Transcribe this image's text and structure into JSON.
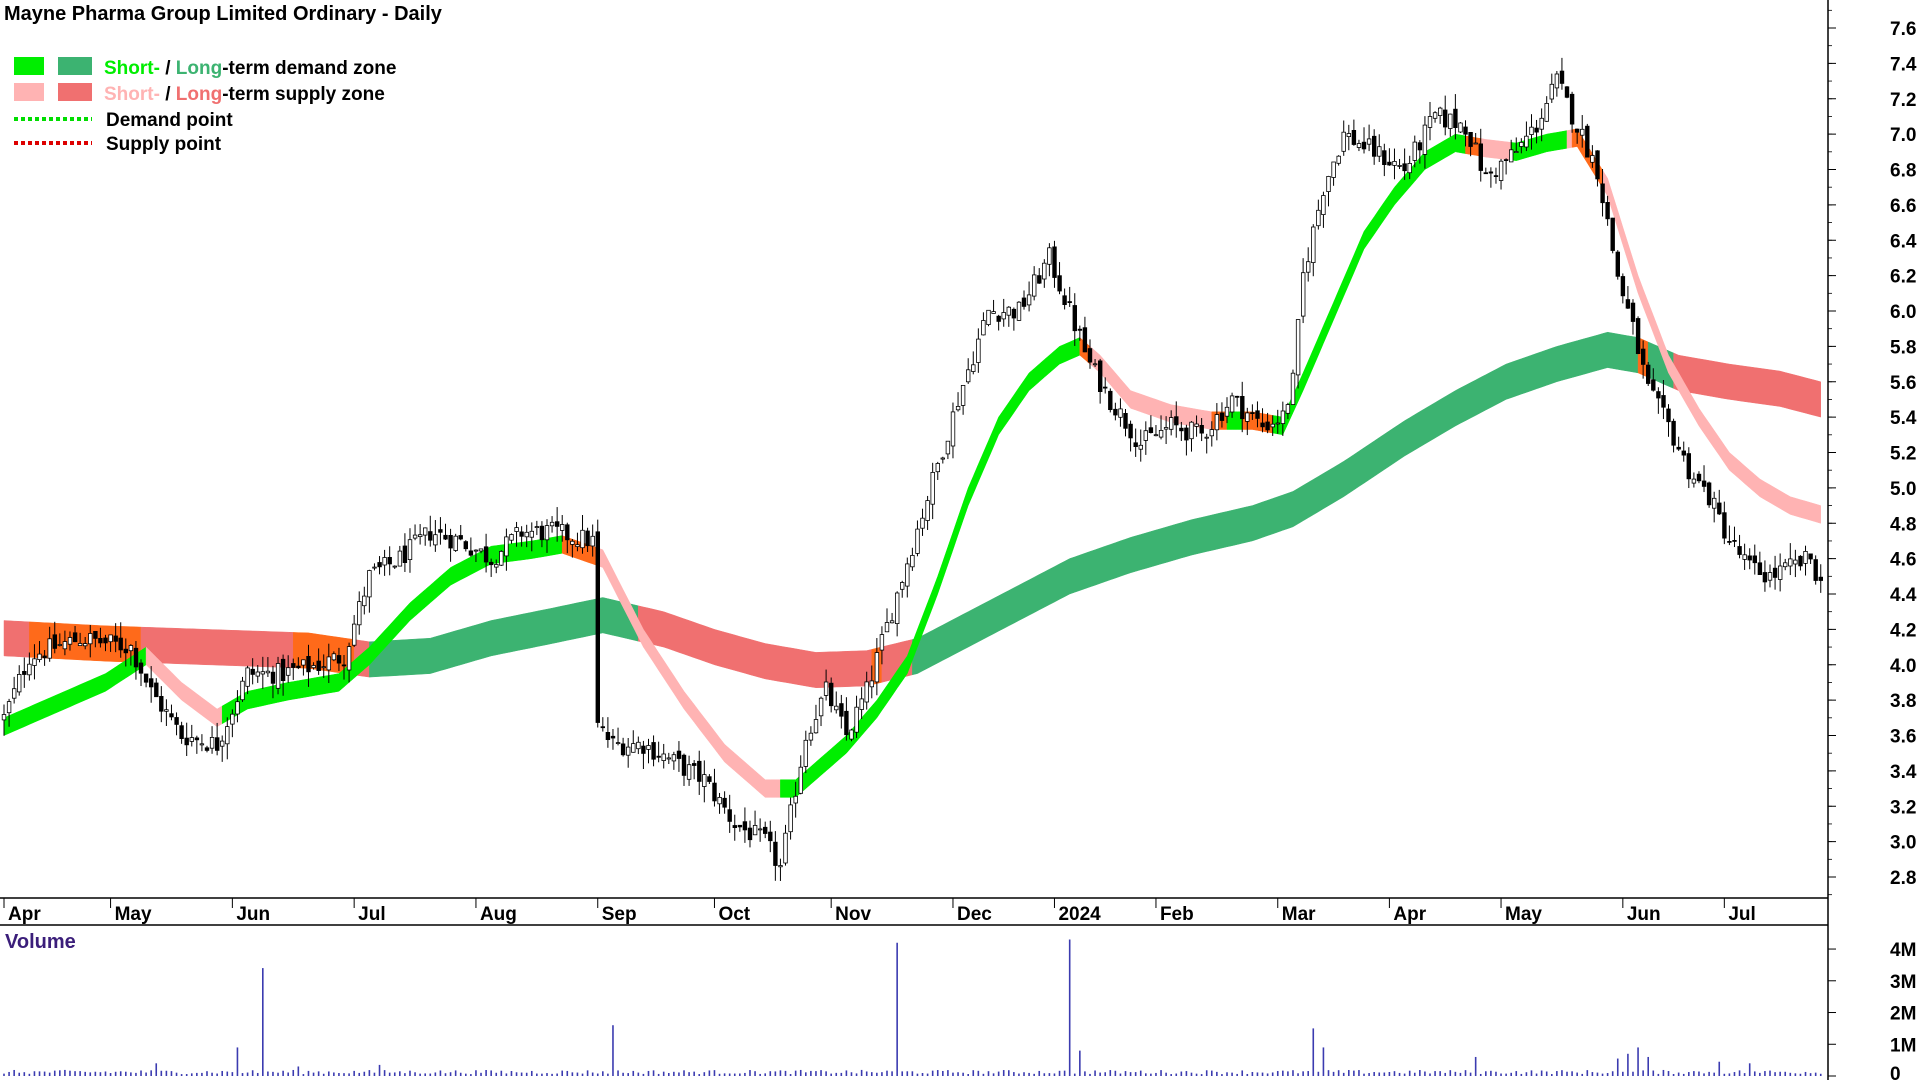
{
  "chart_data": {
    "type": "candlestick",
    "title": "Mayne Pharma Group Limited Ordinary - Daily",
    "legend": {
      "placement": "top-left",
      "items": [
        {
          "short": "Short-",
          "sep": " / ",
          "long": "Long",
          "suffix": "-term demand zone",
          "short_color": "#00ee00",
          "long_color": "#3cb371"
        },
        {
          "short": "Short-",
          "sep": " / ",
          "long": "Long",
          "suffix": "-term supply zone",
          "short_color": "#ffb3b3",
          "long_color": "#f07070"
        },
        {
          "label": "Demand point",
          "color": "#00dd00"
        },
        {
          "label": "Supply point",
          "color": "#dd0000"
        }
      ]
    },
    "colors": {
      "short_demand": "#00ee00",
      "long_demand": "#3cb371",
      "short_supply": "#ffb3b3",
      "long_supply": "#f07070",
      "overlap_orange": "#ff6a1a",
      "volume_bar": "#3b3bb0",
      "candle": "#000000"
    },
    "y_axis": {
      "min": 2.7,
      "max": 7.7,
      "ticks": [
        2.8,
        3.0,
        3.2,
        3.4,
        3.6,
        3.8,
        4.0,
        4.2,
        4.4,
        4.6,
        4.8,
        5.0,
        5.2,
        5.4,
        5.6,
        5.8,
        6.0,
        6.2,
        6.4,
        6.6,
        6.8,
        7.0,
        7.2,
        7.4,
        7.6
      ],
      "tick_labels": [
        "2.8",
        "3.0",
        "3.2",
        "3.4",
        "3.6",
        "3.8",
        "4.0",
        "4.2",
        "4.4",
        "4.6",
        "4.8",
        "5.0",
        "5.2",
        "5.4",
        "5.6",
        "5.8",
        "6.0",
        "6.2",
        "6.4",
        "6.6",
        "6.8",
        "7.0",
        "7.2",
        "7.4",
        "7.6"
      ]
    },
    "x_axis": {
      "labels": [
        "Apr",
        "May",
        "Jun",
        "Jul",
        "Aug",
        "Sep",
        "Oct",
        "Nov",
        "Dec",
        "2024",
        "Feb",
        "Mar",
        "Apr",
        "May",
        "Jun",
        "Jul"
      ],
      "label_day_index": [
        3,
        24,
        48,
        72,
        96,
        120,
        143,
        166,
        190,
        210,
        230,
        254,
        276,
        298,
        322,
        342
      ],
      "total_days": 348
    },
    "anchors_close": [
      [
        0,
        3.7
      ],
      [
        5,
        4.05
      ],
      [
        15,
        4.15
      ],
      [
        25,
        4.1
      ],
      [
        29,
        3.85
      ],
      [
        35,
        3.6
      ],
      [
        42,
        3.55
      ],
      [
        48,
        3.95
      ],
      [
        55,
        3.95
      ],
      [
        62,
        4.0
      ],
      [
        67,
        4.05
      ],
      [
        72,
        4.5
      ],
      [
        78,
        4.6
      ],
      [
        84,
        4.75
      ],
      [
        90,
        4.7
      ],
      [
        96,
        4.6
      ],
      [
        102,
        4.75
      ],
      [
        108,
        4.75
      ],
      [
        116,
        4.7
      ],
      [
        117,
        3.65
      ],
      [
        120,
        3.55
      ],
      [
        126,
        3.55
      ],
      [
        132,
        3.45
      ],
      [
        138,
        3.35
      ],
      [
        144,
        3.1
      ],
      [
        150,
        3.0
      ],
      [
        153,
        2.85
      ],
      [
        158,
        3.6
      ],
      [
        162,
        3.85
      ],
      [
        166,
        3.6
      ],
      [
        170,
        3.85
      ],
      [
        176,
        4.4
      ],
      [
        182,
        4.95
      ],
      [
        188,
        5.5
      ],
      [
        194,
        6.0
      ],
      [
        200,
        6.0
      ],
      [
        206,
        6.3
      ],
      [
        210,
        6.0
      ],
      [
        214,
        5.7
      ],
      [
        218,
        5.5
      ],
      [
        224,
        5.25
      ],
      [
        230,
        5.35
      ],
      [
        236,
        5.3
      ],
      [
        242,
        5.5
      ],
      [
        248,
        5.35
      ],
      [
        252,
        5.4
      ],
      [
        254,
        5.6
      ],
      [
        256,
        6.2
      ],
      [
        260,
        6.7
      ],
      [
        264,
        7.0
      ],
      [
        270,
        6.9
      ],
      [
        276,
        6.8
      ],
      [
        282,
        7.1
      ],
      [
        288,
        7.05
      ],
      [
        292,
        6.75
      ],
      [
        298,
        6.9
      ],
      [
        302,
        7.05
      ],
      [
        306,
        7.3
      ],
      [
        310,
        7.05
      ],
      [
        314,
        6.8
      ],
      [
        318,
        6.2
      ],
      [
        321,
        5.9
      ],
      [
        324,
        5.55
      ],
      [
        328,
        5.35
      ],
      [
        332,
        5.1
      ],
      [
        336,
        4.95
      ],
      [
        340,
        4.7
      ],
      [
        344,
        4.55
      ],
      [
        348,
        4.5
      ],
      [
        352,
        4.55
      ],
      [
        356,
        4.6
      ],
      [
        358,
        4.45
      ]
    ],
    "short_zone_mid": [
      [
        0,
        3.65
      ],
      [
        20,
        3.9
      ],
      [
        28,
        4.05
      ],
      [
        35,
        3.85
      ],
      [
        42,
        3.7
      ],
      [
        48,
        3.8
      ],
      [
        56,
        3.85
      ],
      [
        66,
        3.9
      ],
      [
        72,
        4.05
      ],
      [
        80,
        4.3
      ],
      [
        88,
        4.5
      ],
      [
        96,
        4.62
      ],
      [
        104,
        4.65
      ],
      [
        110,
        4.68
      ],
      [
        118,
        4.6
      ],
      [
        126,
        4.15
      ],
      [
        134,
        3.8
      ],
      [
        142,
        3.5
      ],
      [
        150,
        3.3
      ],
      [
        156,
        3.3
      ],
      [
        160,
        3.4
      ],
      [
        166,
        3.55
      ],
      [
        172,
        3.75
      ],
      [
        178,
        4.0
      ],
      [
        184,
        4.45
      ],
      [
        190,
        4.95
      ],
      [
        196,
        5.35
      ],
      [
        202,
        5.6
      ],
      [
        208,
        5.75
      ],
      [
        212,
        5.8
      ],
      [
        216,
        5.7
      ],
      [
        222,
        5.5
      ],
      [
        230,
        5.42
      ],
      [
        238,
        5.38
      ],
      [
        246,
        5.38
      ],
      [
        252,
        5.35
      ],
      [
        256,
        5.6
      ],
      [
        262,
        6.0
      ],
      [
        268,
        6.4
      ],
      [
        274,
        6.65
      ],
      [
        280,
        6.85
      ],
      [
        286,
        6.95
      ],
      [
        292,
        6.92
      ],
      [
        298,
        6.9
      ],
      [
        304,
        6.95
      ],
      [
        310,
        6.98
      ],
      [
        316,
        6.7
      ],
      [
        322,
        6.15
      ],
      [
        328,
        5.7
      ],
      [
        334,
        5.4
      ],
      [
        340,
        5.15
      ],
      [
        346,
        5.0
      ],
      [
        352,
        4.9
      ],
      [
        358,
        4.85
      ]
    ],
    "short_zone_width": 0.1,
    "long_zone_mid": [
      [
        0,
        4.15
      ],
      [
        20,
        4.12
      ],
      [
        40,
        4.1
      ],
      [
        60,
        4.08
      ],
      [
        72,
        4.03
      ],
      [
        84,
        4.05
      ],
      [
        96,
        4.15
      ],
      [
        108,
        4.22
      ],
      [
        118,
        4.28
      ],
      [
        130,
        4.2
      ],
      [
        140,
        4.1
      ],
      [
        150,
        4.02
      ],
      [
        160,
        3.97
      ],
      [
        170,
        3.98
      ],
      [
        180,
        4.05
      ],
      [
        190,
        4.2
      ],
      [
        200,
        4.35
      ],
      [
        210,
        4.5
      ],
      [
        222,
        4.62
      ],
      [
        234,
        4.72
      ],
      [
        246,
        4.8
      ],
      [
        254,
        4.88
      ],
      [
        264,
        5.05
      ],
      [
        276,
        5.28
      ],
      [
        286,
        5.45
      ],
      [
        296,
        5.6
      ],
      [
        306,
        5.7
      ],
      [
        316,
        5.78
      ],
      [
        322,
        5.75
      ],
      [
        330,
        5.65
      ],
      [
        340,
        5.6
      ],
      [
        350,
        5.56
      ],
      [
        358,
        5.5
      ]
    ],
    "long_zone_width": 0.2,
    "volume": {
      "title": "Volume",
      "y_axis": {
        "min": 0,
        "max": 4.6,
        "ticks": [
          0,
          1,
          2,
          3,
          4
        ],
        "tick_labels": [
          "0",
          "1M",
          "2M",
          "3M",
          "4M"
        ]
      },
      "base_millions": 0.12,
      "spikes": [
        [
          30,
          0.4
        ],
        [
          46,
          0.9
        ],
        [
          51,
          3.4
        ],
        [
          58,
          0.3
        ],
        [
          74,
          0.35
        ],
        [
          120,
          1.6
        ],
        [
          176,
          4.2
        ],
        [
          210,
          4.3
        ],
        [
          212,
          0.8
        ],
        [
          258,
          1.5
        ],
        [
          260,
          0.9
        ],
        [
          290,
          0.6
        ],
        [
          318,
          0.55
        ],
        [
          320,
          0.7
        ],
        [
          322,
          0.9
        ],
        [
          324,
          0.6
        ],
        [
          338,
          0.45
        ],
        [
          344,
          0.4
        ]
      ]
    }
  }
}
